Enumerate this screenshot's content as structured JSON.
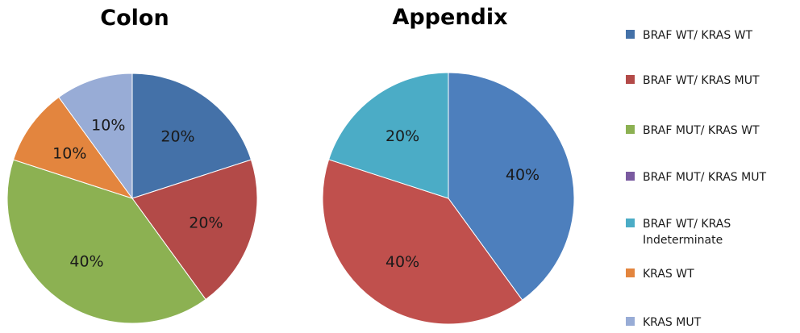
{
  "chart_data": [
    {
      "type": "pie",
      "title": "Colon",
      "categories": [
        "BRAF WT/ KRAS WT",
        "BRAF WT/ KRAS MUT",
        "BRAF MUT/ KRAS WT",
        "KRAS WT",
        "KRAS MUT"
      ],
      "values": [
        20,
        20,
        40,
        10,
        10
      ],
      "labels": [
        "20%",
        "20%",
        "40%",
        "10%",
        "10%"
      ],
      "colors": [
        "#4471a8",
        "#b34a48",
        "#8cb152",
        "#e3853e",
        "#98acd6"
      ]
    },
    {
      "type": "pie",
      "title": "Appendix",
      "categories": [
        "BRAF WT/ KRAS WT",
        "BRAF WT/ KRAS MUT",
        "BRAF WT/ KRAS Indeterminate"
      ],
      "values": [
        40,
        40,
        20
      ],
      "labels": [
        "40%",
        "40%",
        "20%"
      ],
      "colors": [
        "#4d7fbd",
        "#c0504d",
        "#4bacc6"
      ]
    }
  ],
  "legend": {
    "placement": "right",
    "items": [
      {
        "label": [
          "BRAF WT/ KRAS WT"
        ],
        "color": "#4471a8"
      },
      {
        "label": [
          "BRAF WT/ KRAS MUT"
        ],
        "color": "#b34a48"
      },
      {
        "label": [
          "BRAF MUT/ KRAS WT"
        ],
        "color": "#8cb152"
      },
      {
        "label": [
          "BRAF MUT/ KRAS MUT"
        ],
        "color": "#7a5aa0"
      },
      {
        "label": [
          "BRAF WT/ KRAS",
          "Indeterminate"
        ],
        "color": "#4bacc6"
      },
      {
        "label": [
          "KRAS WT"
        ],
        "color": "#e3853e"
      },
      {
        "label": [
          "KRAS MUT"
        ],
        "color": "#98acd6"
      }
    ]
  }
}
